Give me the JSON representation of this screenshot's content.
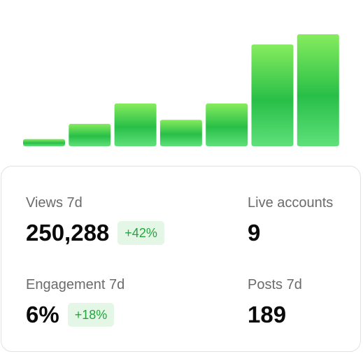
{
  "chart_data": {
    "type": "bar",
    "values": [
      7,
      22,
      42,
      26,
      42,
      100,
      110
    ],
    "ylim": [
      0,
      110
    ],
    "colors": {
      "bar_top": "#86ec5e",
      "bar_mid": "#28bf48",
      "bar_bottom": "#5fe07a"
    }
  },
  "stats": {
    "views": {
      "label": "Views 7d",
      "value": "250,288",
      "change": "+42%"
    },
    "live_accounts": {
      "label": "Live accounts",
      "value": "9"
    },
    "engagement": {
      "label": "Engagement 7d",
      "value": "6%",
      "change": "+18%"
    },
    "posts": {
      "label": "Posts 7d",
      "value": "189"
    }
  }
}
